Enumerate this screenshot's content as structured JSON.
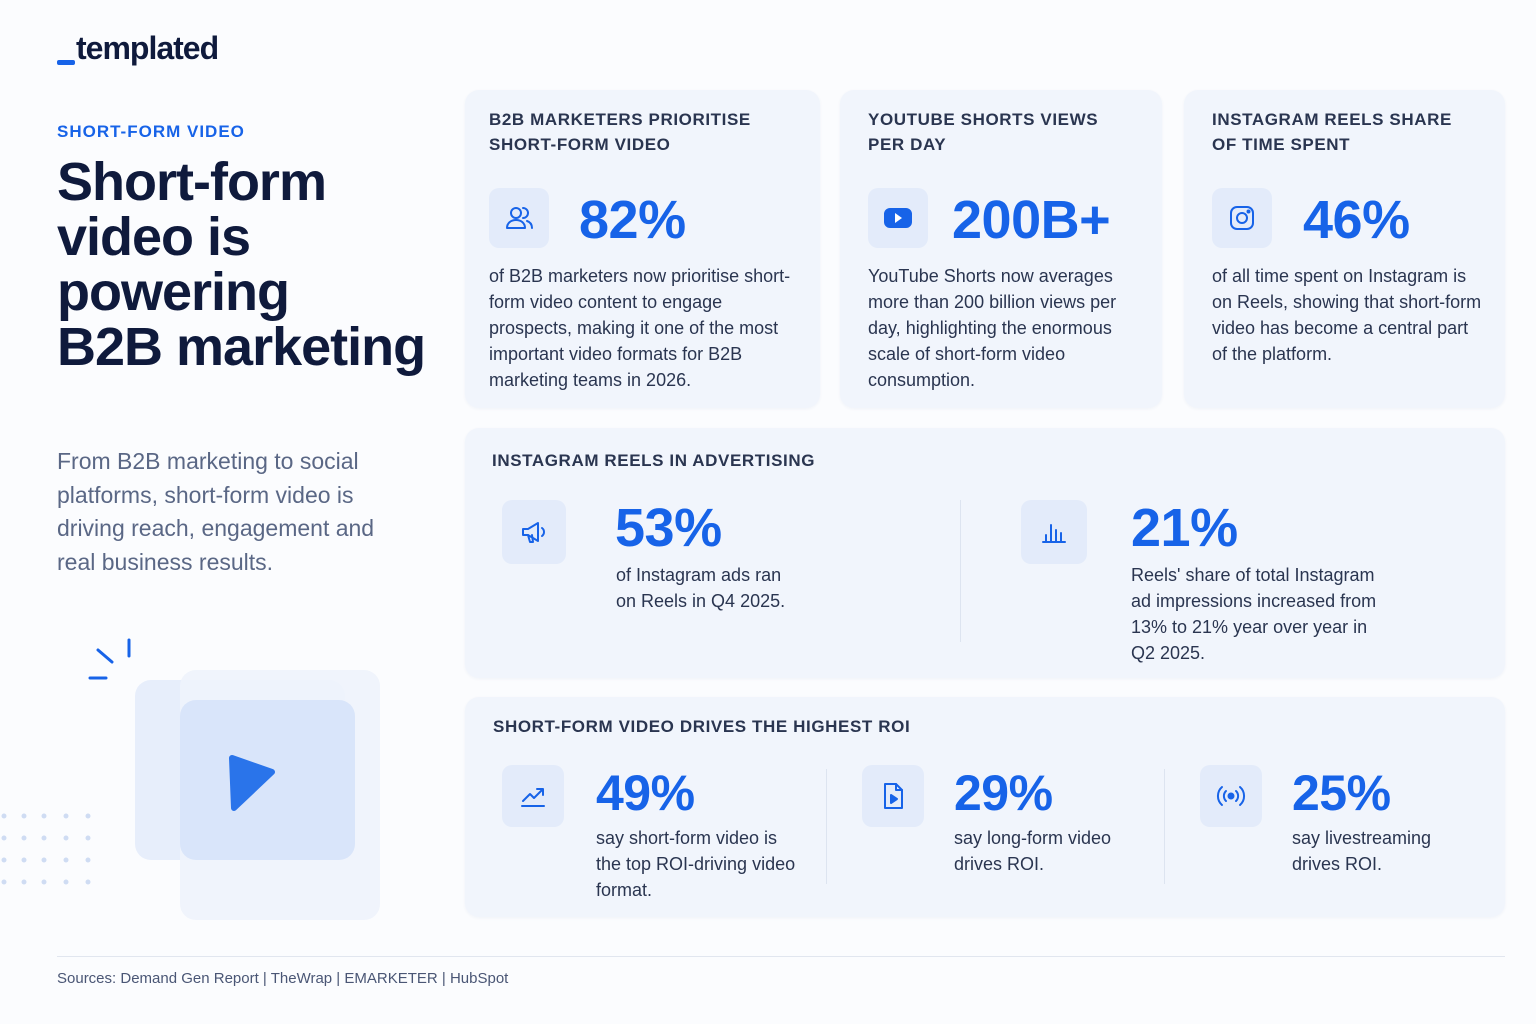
{
  "brand": "templated",
  "eyebrow": "SHORT-FORM VIDEO",
  "headline_lines": [
    "Short-form",
    "video is",
    "powering",
    "B2B marketing"
  ],
  "intro": "From B2B marketing to social platforms, short-form video is driving reach, engagement and real business results.",
  "stat_cards": [
    {
      "title": "B2B MARKETERS PRIORITISE SHORT-FORM VIDEO",
      "value": "82%",
      "text": "of B2B marketers now prioritise short-form video content to engage prospects, making it one of the most important video formats for B2B marketing teams in 2026."
    },
    {
      "title": "YOUTUBE SHORTS VIEWS PER DAY",
      "value": "200B+",
      "text": "YouTube Shorts now averages more than 200 billion views per day, highlighting the enormous scale of short-form video consumption."
    },
    {
      "title": "INSTAGRAM REELS SHARE OF TIME SPENT",
      "value": "46%",
      "text": "of all time spent on Instagram is on Reels, showing that short-form video has become a central part of the platform."
    }
  ],
  "reels_ads": {
    "title": "INSTAGRAM REELS IN ADVERTISING",
    "stats": [
      {
        "value": "53%",
        "text": "of Instagram ads ran on Reels in Q4 2025."
      },
      {
        "value": "21%",
        "text": "Reels' share of total Instagram ad impressions increased from 13% to 21% year over year in Q2 2025."
      }
    ]
  },
  "roi": {
    "title": "SHORT-FORM VIDEO DRIVES THE HIGHEST ROI",
    "stats": [
      {
        "value": "49%",
        "text": "say short-form video is the top ROI-driving video format."
      },
      {
        "value": "29%",
        "text": "say long-form video drives ROI."
      },
      {
        "value": "25%",
        "text": "say livestreaming drives ROI."
      }
    ]
  },
  "sources": "Sources: Demand Gen Report | TheWrap | EMARKETER | HubSpot"
}
